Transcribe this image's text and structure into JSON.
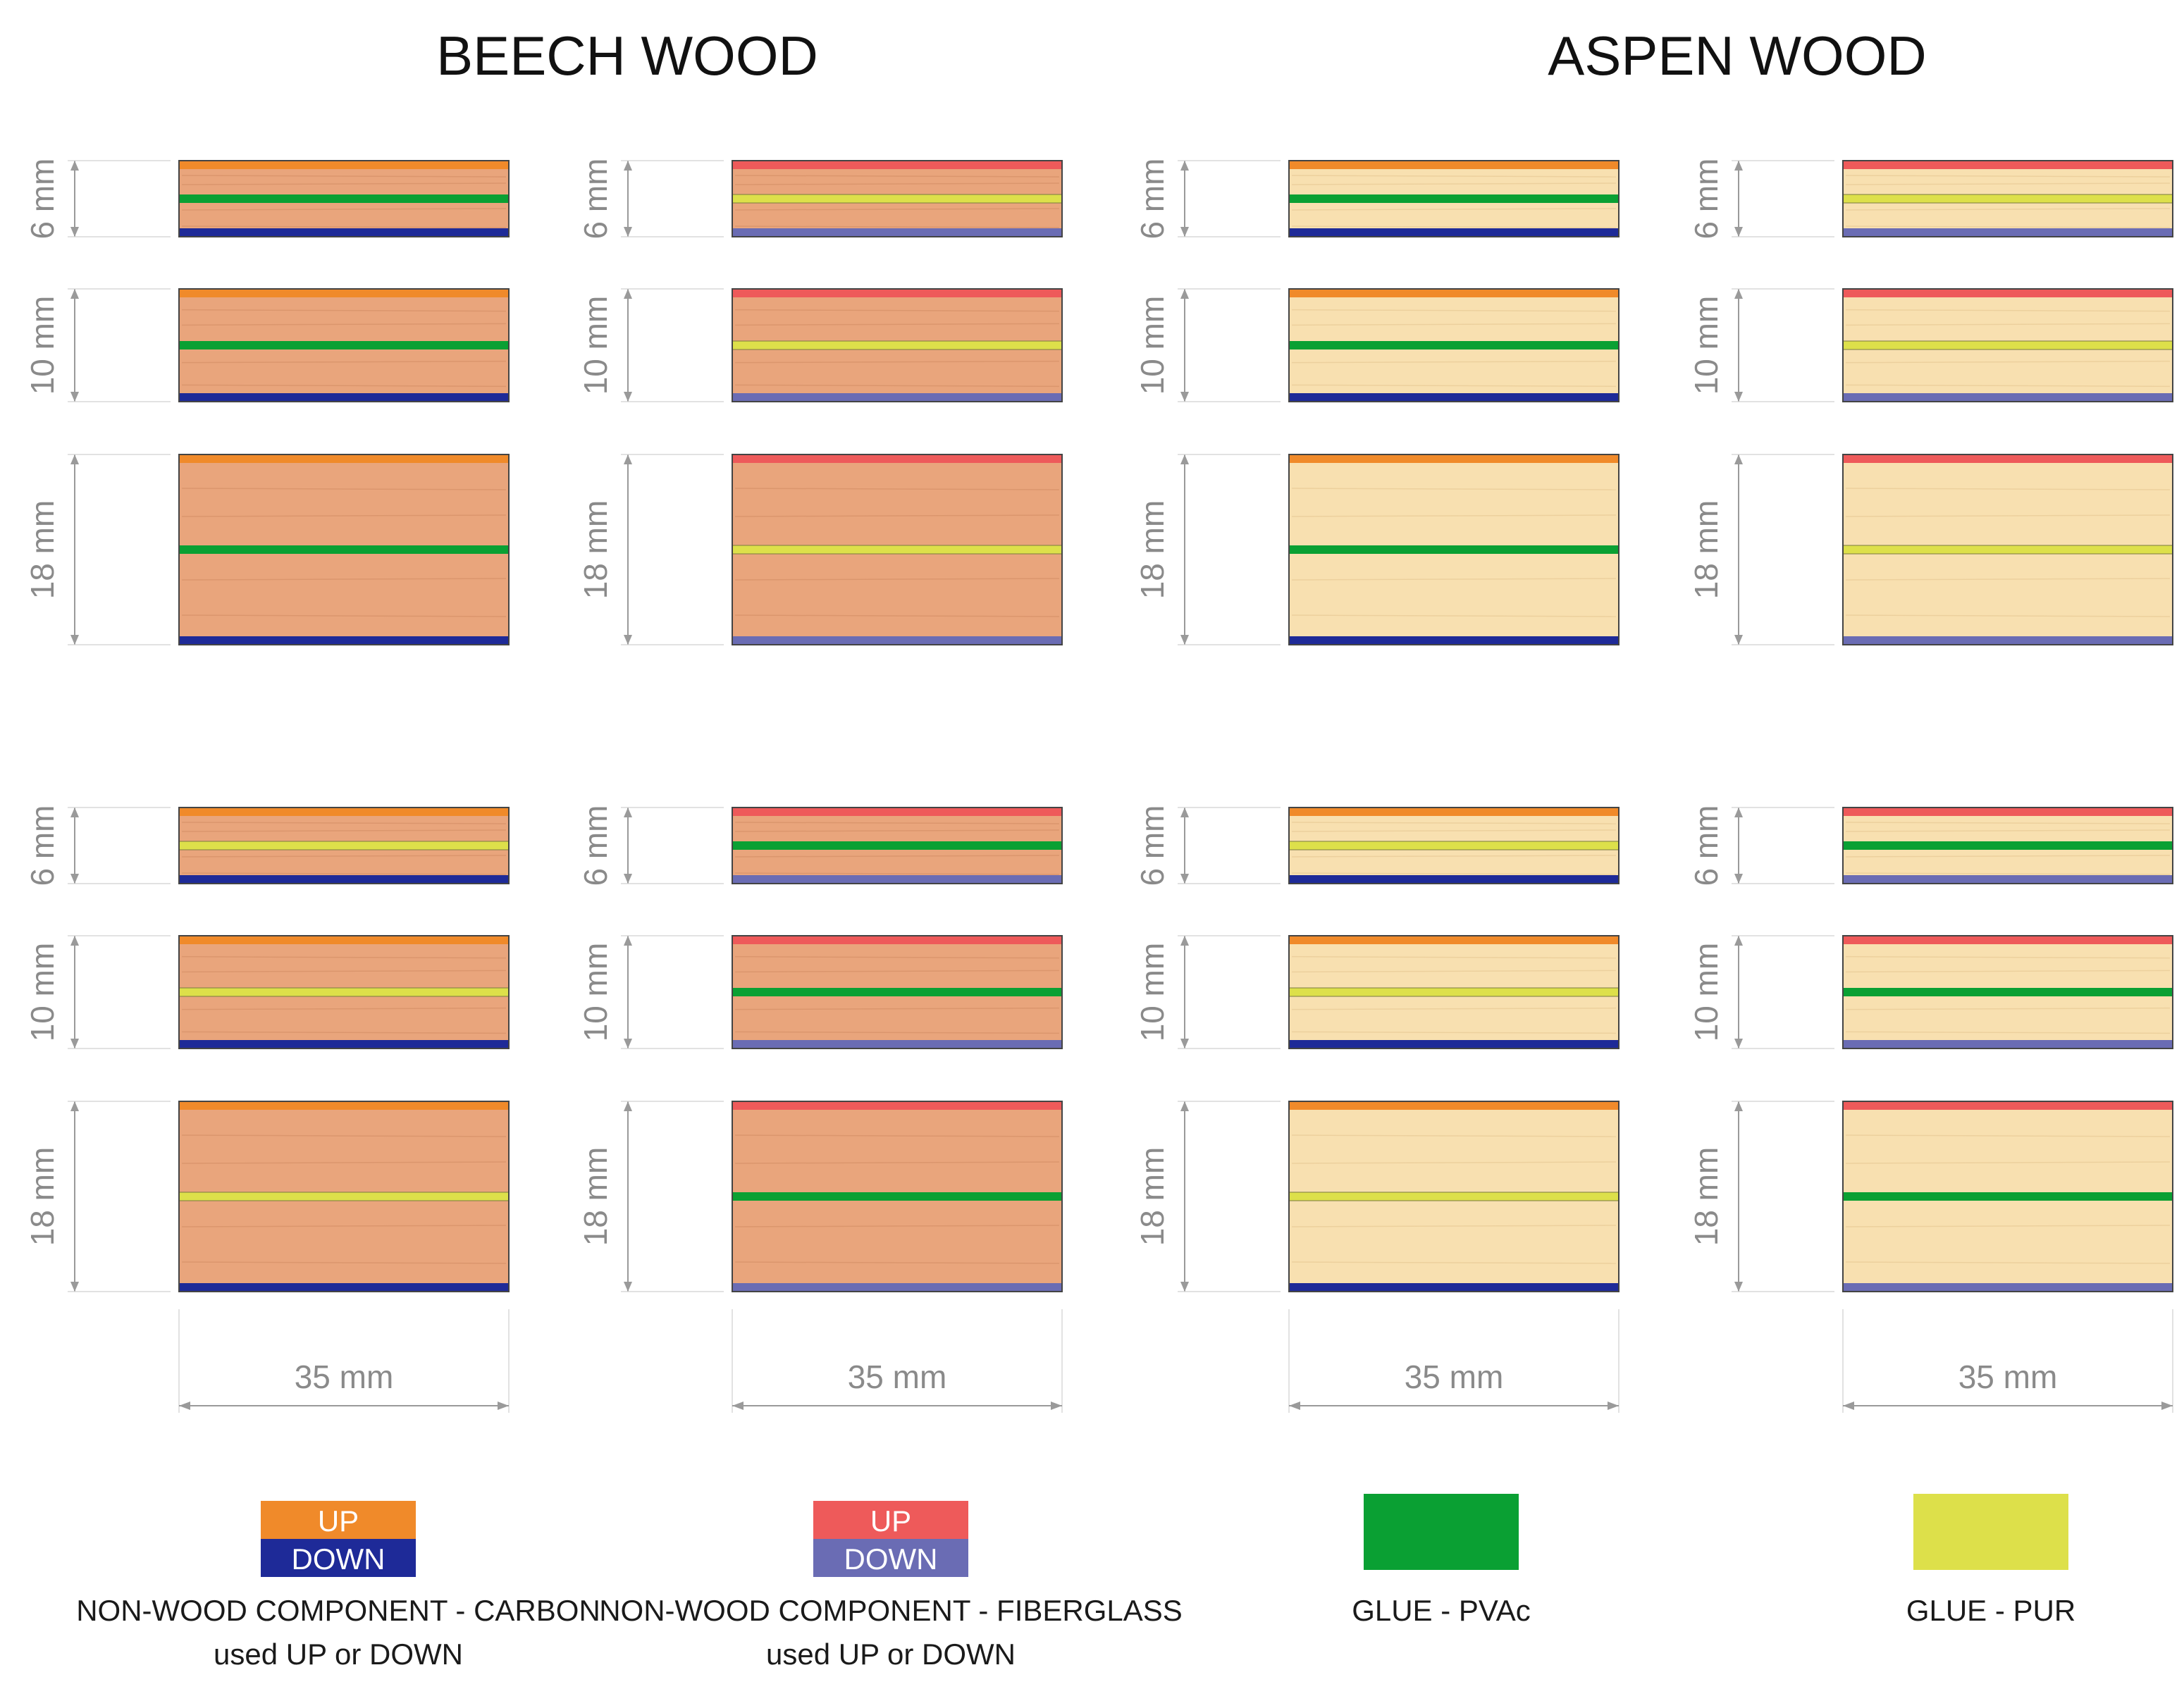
{
  "titles": {
    "beech": "BEECH WOOD",
    "aspen": "ASPEN WOOD"
  },
  "thickness_labels": [
    "6 mm",
    "10 mm",
    "18 mm"
  ],
  "width_label": "35 mm",
  "colors": {
    "carbon_up": "#f08a2a",
    "carbon_down": "#1e2a98",
    "fiberglass_up": "#ee5a5a",
    "fiberglass_down": "#6a6cb4",
    "glue_pvac": "#0aa033",
    "glue_pur": "#dde04a",
    "beech_wood": "#e9a57c",
    "aspen_wood": "#f8e0b0"
  },
  "columns": [
    {
      "wood": "beech",
      "component": "carbon"
    },
    {
      "wood": "beech",
      "component": "fiberglass"
    },
    {
      "wood": "aspen",
      "component": "carbon"
    },
    {
      "wood": "aspen",
      "component": "fiberglass"
    }
  ],
  "row_groups": [
    {
      "glues": [
        "pvac",
        "pur",
        "pvac",
        "pur"
      ]
    },
    {
      "glues": [
        "pur",
        "pvac",
        "pur",
        "pvac"
      ]
    }
  ],
  "legend": [
    {
      "kind": "component",
      "component": "carbon",
      "up_label": "UP",
      "down_label": "DOWN",
      "text1": "NON-WOOD COMPONENT - CARBON",
      "text2": "used UP or DOWN"
    },
    {
      "kind": "component",
      "component": "fiberglass",
      "up_label": "UP",
      "down_label": "DOWN",
      "text1": "NON-WOOD COMPONENT - FIBERGLASS",
      "text2": "used UP or DOWN"
    },
    {
      "kind": "glue",
      "glue": "pvac",
      "text1": "GLUE - PVAc"
    },
    {
      "kind": "glue",
      "glue": "pur",
      "text1": "GLUE - PUR"
    }
  ]
}
